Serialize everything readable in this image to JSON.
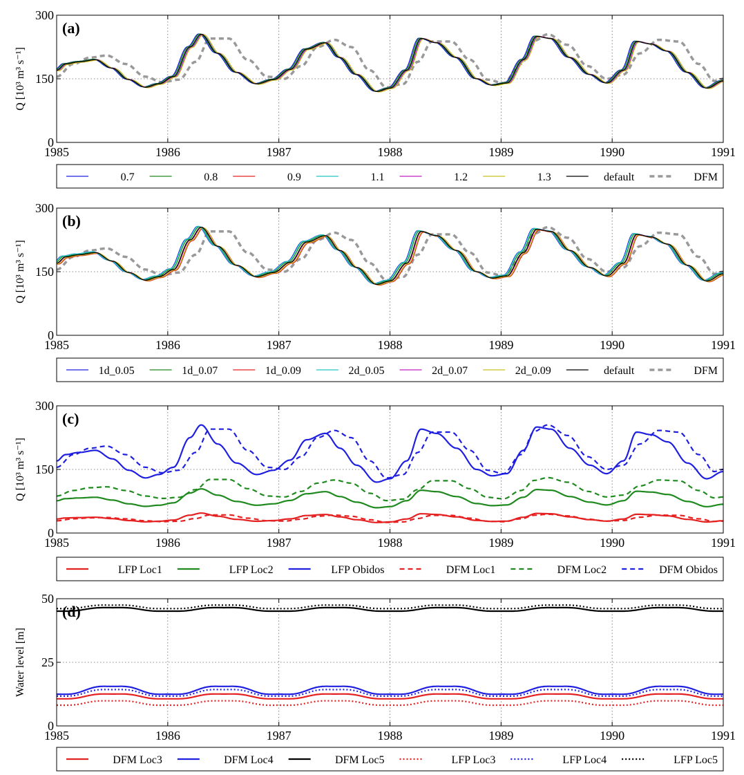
{
  "chart_data": [
    {
      "type": "line",
      "panel_label": "(a)",
      "ylabel": "Q [10³ m³ s⁻¹]",
      "ylim": [
        0,
        300
      ],
      "xlim": [
        1985,
        1991
      ],
      "xticks": [
        "1985",
        "1986",
        "1987",
        "1988",
        "1989",
        "1990",
        "1991"
      ],
      "yticks": [
        "0",
        "150",
        "300"
      ],
      "grid": true,
      "legend_position": "below",
      "legend_cols": 8,
      "series": [
        {
          "name": "0.7",
          "color": "#1f1fe0",
          "dash": "solid",
          "offset": [
            -0.02,
            1
          ]
        },
        {
          "name": "0.8",
          "color": "#1e8a1e",
          "dash": "solid",
          "offset": [
            -0.01,
            1
          ]
        },
        {
          "name": "0.9",
          "color": "#e52020",
          "dash": "solid",
          "offset": [
            0.005,
            0
          ]
        },
        {
          "name": "1.1",
          "color": "#22c4c4",
          "dash": "solid",
          "offset": [
            0.01,
            0
          ]
        },
        {
          "name": "1.2",
          "color": "#c020c0",
          "dash": "solid",
          "offset": [
            0.015,
            0
          ]
        },
        {
          "name": "1.3",
          "color": "#c8c020",
          "dash": "solid",
          "offset": [
            0.02,
            -1
          ]
        },
        {
          "name": "default",
          "color": "#000000",
          "dash": "solid",
          "offset": [
            0,
            0
          ]
        },
        {
          "name": "DFM",
          "color": "#999999",
          "dash": "dashed",
          "series": "dfm"
        }
      ]
    },
    {
      "type": "line",
      "panel_label": "(b)",
      "ylabel": "Q [10³ m³ s⁻¹]",
      "ylim": [
        0,
        300
      ],
      "xlim": [
        1985,
        1991
      ],
      "xticks": [
        "1985",
        "1986",
        "1987",
        "1988",
        "1989",
        "1990",
        "1991"
      ],
      "yticks": [
        "0",
        "150",
        "300"
      ],
      "grid": true,
      "legend_position": "below",
      "legend_cols": 8,
      "series": [
        {
          "name": "1d_0.05",
          "color": "#1f1fe0",
          "dash": "solid",
          "offset": [
            -0.03,
            2
          ]
        },
        {
          "name": "1d_0.07",
          "color": "#1e8a1e",
          "dash": "solid",
          "offset": [
            -0.015,
            1
          ]
        },
        {
          "name": "1d_0.09",
          "color": "#e52020",
          "dash": "solid",
          "offset": [
            0.02,
            -2
          ]
        },
        {
          "name": "2d_0.05",
          "color": "#22c4c4",
          "dash": "solid",
          "offset": [
            -0.025,
            2
          ]
        },
        {
          "name": "2d_0.07",
          "color": "#c020c0",
          "dash": "solid",
          "offset": [
            0.005,
            0
          ]
        },
        {
          "name": "2d_0.09",
          "color": "#c8c020",
          "dash": "solid",
          "offset": [
            0.015,
            -1
          ]
        },
        {
          "name": "default",
          "color": "#000000",
          "dash": "solid",
          "offset": [
            0,
            0
          ]
        },
        {
          "name": "DFM",
          "color": "#999999",
          "dash": "dashed",
          "series": "dfm"
        }
      ]
    },
    {
      "type": "line",
      "panel_label": "(c)",
      "ylabel": "Q [10³ m³ s⁻¹]",
      "ylim": [
        0,
        300
      ],
      "xlim": [
        1985,
        1991
      ],
      "xticks": [
        "1985",
        "1986",
        "1987",
        "1988",
        "1989",
        "1990",
        "1991"
      ],
      "yticks": [
        "0",
        "150",
        "300"
      ],
      "grid": true,
      "legend_position": "below",
      "legend_cols": 6,
      "series": [
        {
          "name": "LFP Loc1",
          "color": "#e52020",
          "dash": "solid",
          "base": "lfp",
          "scale": 0.3
        },
        {
          "name": "LFP Loc2",
          "color": "#1e8a1e",
          "dash": "solid",
          "base": "lfp",
          "scale": 0.6
        },
        {
          "name": "LFP Obidos",
          "color": "#1f1fe0",
          "dash": "solid",
          "base": "lfp",
          "scale": 1.0
        },
        {
          "name": "DFM Loc1",
          "color": "#e52020",
          "dash": "dashed",
          "base": "dfm",
          "scale": 0.22
        },
        {
          "name": "DFM Loc2",
          "color": "#1e8a1e",
          "dash": "dashed",
          "base": "dfm",
          "scale": 0.62
        },
        {
          "name": "DFM Obidos",
          "color": "#1f1fe0",
          "dash": "dashed",
          "base": "dfm",
          "scale": 1.0
        }
      ]
    },
    {
      "type": "line",
      "panel_label": "(d)",
      "ylabel": "Water level [m]",
      "ylim": [
        0,
        50
      ],
      "xlim": [
        1985,
        1991
      ],
      "xticks": [
        "1985",
        "1986",
        "1987",
        "1988",
        "1989",
        "1990",
        "1991"
      ],
      "yticks": [
        "0",
        "25",
        "50"
      ],
      "grid": true,
      "legend_position": "below",
      "legend_cols": 6,
      "series": [
        {
          "name": "DFM Loc3",
          "color": "#e52020",
          "dash": "solid",
          "mean": 11.6,
          "amp": 1.1
        },
        {
          "name": "DFM Loc4",
          "color": "#1f1fe0",
          "dash": "solid",
          "mean": 14.0,
          "amp": 1.8
        },
        {
          "name": "DFM Loc5",
          "color": "#000000",
          "dash": "solid",
          "mean": 45.8,
          "amp": 0.8
        },
        {
          "name": "LFP Loc3",
          "color": "#e52020",
          "dash": "dotted",
          "mean": 9.0,
          "amp": 1.0
        },
        {
          "name": "LFP Loc4",
          "color": "#1f1fe0",
          "dash": "dotted",
          "mean": 13.0,
          "amp": 1.5
        },
        {
          "name": "LFP Loc5",
          "color": "#000000",
          "dash": "dotted",
          "mean": 46.8,
          "amp": 0.8
        }
      ]
    }
  ],
  "hydrograph": {
    "lfp_default": {
      "x": [
        1985.0,
        1985.08,
        1985.2,
        1985.35,
        1985.5,
        1985.65,
        1985.8,
        1985.92,
        1986.05,
        1986.2,
        1986.3,
        1986.45,
        1986.62,
        1986.8,
        1986.95,
        1987.1,
        1987.25,
        1987.42,
        1987.55,
        1987.7,
        1987.88,
        1988.0,
        1988.15,
        1988.28,
        1988.42,
        1988.6,
        1988.78,
        1988.92,
        1989.05,
        1989.2,
        1989.32,
        1989.45,
        1989.62,
        1989.8,
        1989.95,
        1990.1,
        1990.22,
        1990.35,
        1990.5,
        1990.68,
        1990.85,
        1991.0
      ],
      "y": [
        170,
        185,
        190,
        195,
        175,
        148,
        130,
        138,
        155,
        225,
        255,
        210,
        165,
        138,
        148,
        172,
        220,
        235,
        200,
        160,
        120,
        128,
        170,
        245,
        235,
        200,
        150,
        135,
        140,
        195,
        250,
        245,
        200,
        160,
        140,
        170,
        238,
        232,
        215,
        165,
        128,
        145
      ]
    },
    "dfm": {
      "x": [
        1985.0,
        1985.15,
        1985.3,
        1985.45,
        1985.62,
        1985.8,
        1985.95,
        1986.1,
        1986.25,
        1986.38,
        1986.55,
        1986.72,
        1986.9,
        1987.05,
        1987.2,
        1987.35,
        1987.5,
        1987.65,
        1987.82,
        1987.97,
        1988.12,
        1988.25,
        1988.38,
        1988.55,
        1988.72,
        1988.88,
        1989.02,
        1989.18,
        1989.3,
        1989.42,
        1989.6,
        1989.78,
        1989.95,
        1990.1,
        1990.25,
        1990.42,
        1990.6,
        1990.78,
        1990.92,
        1991.0
      ],
      "y": [
        155,
        185,
        200,
        205,
        185,
        155,
        142,
        148,
        190,
        245,
        245,
        195,
        155,
        150,
        180,
        225,
        242,
        225,
        170,
        130,
        138,
        190,
        238,
        238,
        195,
        148,
        140,
        185,
        240,
        255,
        230,
        180,
        150,
        160,
        210,
        242,
        238,
        185,
        145,
        150
      ]
    }
  }
}
